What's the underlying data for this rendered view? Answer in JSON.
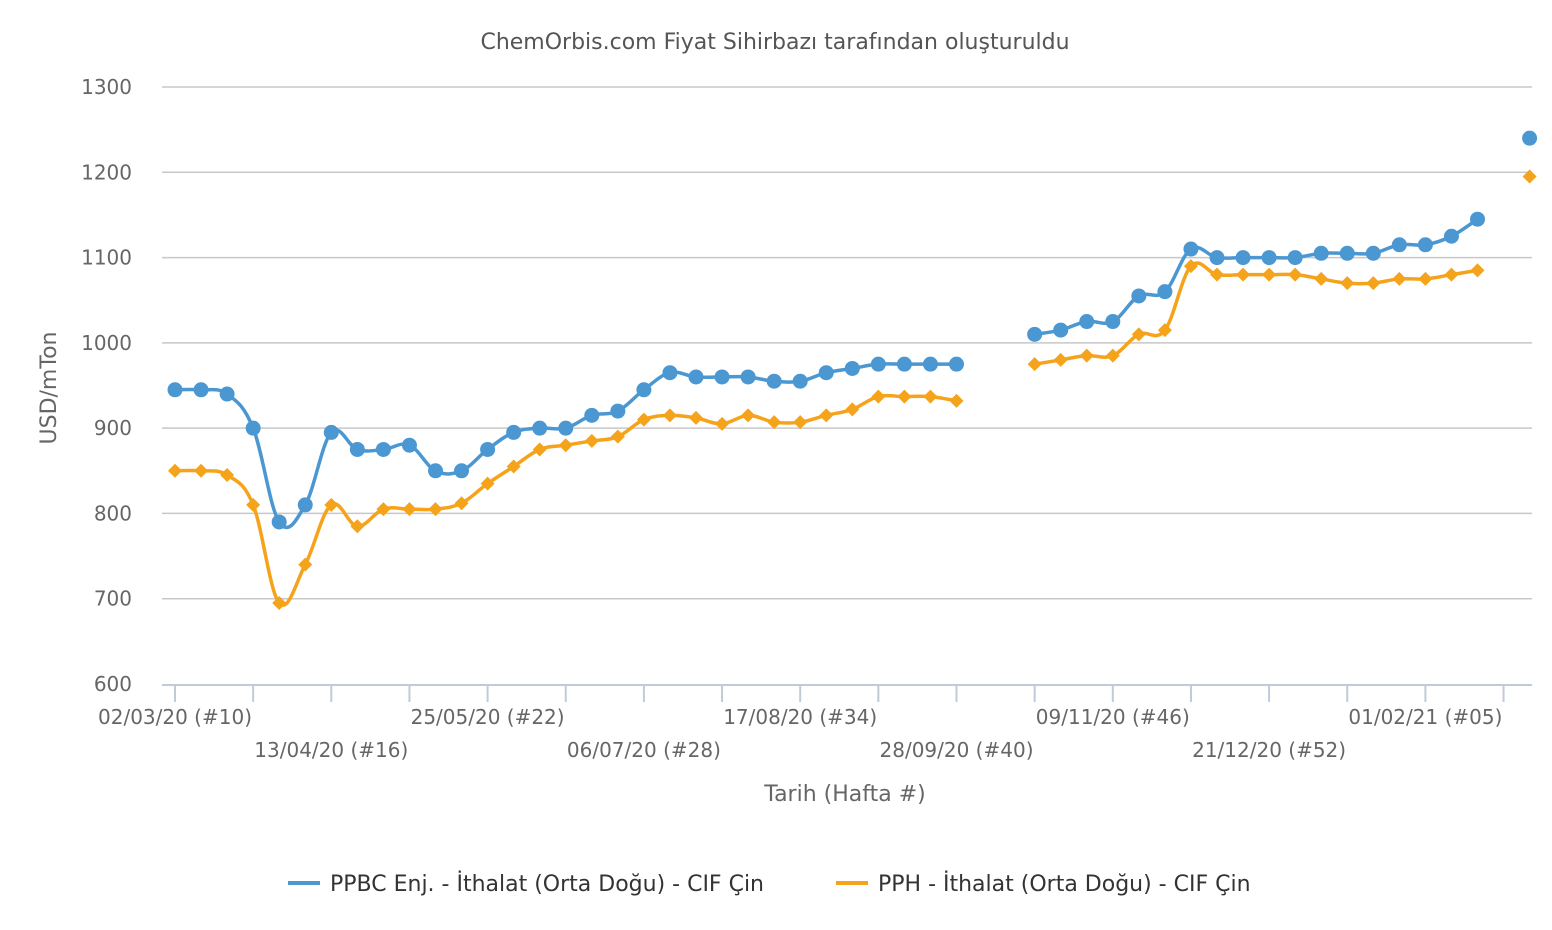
{
  "chart_data": {
    "type": "line",
    "title": "ChemOrbis.com Fiyat Sihirbazı tarafından oluşturuldu",
    "xlabel": "Tarih (Hafta #)",
    "ylabel": "USD/mTon",
    "ylim": [
      600,
      1300
    ],
    "yticks": [
      600,
      700,
      800,
      900,
      1000,
      1100,
      1200,
      1300
    ],
    "grid": true,
    "legend_position": "bottom",
    "x_week_count": 53,
    "x_tick_labels": [
      {
        "week": 0,
        "label": "02/03/20 (#10)"
      },
      {
        "week": 6,
        "label": "13/04/20 (#16)"
      },
      {
        "week": 12,
        "label": "25/05/20 (#22)"
      },
      {
        "week": 18,
        "label": "06/07/20 (#28)"
      },
      {
        "week": 24,
        "label": "17/08/20 (#34)"
      },
      {
        "week": 30,
        "label": "28/09/20 (#40)"
      },
      {
        "week": 36,
        "label": "09/11/20 (#46)"
      },
      {
        "week": 42,
        "label": "21/12/20 (#52)"
      },
      {
        "week": 48,
        "label": "01/02/21 (#05)"
      }
    ],
    "series": [
      {
        "name": "PPBC Enj. - İthalat (Orta Doğu) - CIF Çin",
        "color": "#4a97d2",
        "marker": "circle",
        "values": [
          945,
          945,
          940,
          900,
          790,
          810,
          895,
          875,
          875,
          880,
          850,
          850,
          875,
          895,
          900,
          900,
          915,
          920,
          945,
          965,
          960,
          960,
          960,
          955,
          955,
          965,
          970,
          975,
          975,
          975,
          975,
          null,
          null,
          1010,
          1015,
          1025,
          1025,
          1055,
          1060,
          1110,
          1100,
          1100,
          1100,
          1100,
          1105,
          1105,
          1105,
          1115,
          1115,
          1125,
          1145,
          null,
          1240
        ]
      },
      {
        "name": "PPH - İthalat (Orta Doğu) - CIF Çin",
        "color": "#f5a31a",
        "marker": "diamond",
        "values": [
          850,
          850,
          845,
          810,
          695,
          740,
          810,
          785,
          805,
          805,
          805,
          812,
          835,
          855,
          875,
          880,
          885,
          890,
          910,
          915,
          912,
          905,
          915,
          907,
          907,
          915,
          922,
          937,
          937,
          937,
          932,
          null,
          null,
          975,
          980,
          985,
          985,
          1010,
          1015,
          1090,
          1080,
          1080,
          1080,
          1080,
          1075,
          1070,
          1070,
          1075,
          1075,
          1080,
          1085,
          null,
          1195
        ]
      }
    ]
  }
}
